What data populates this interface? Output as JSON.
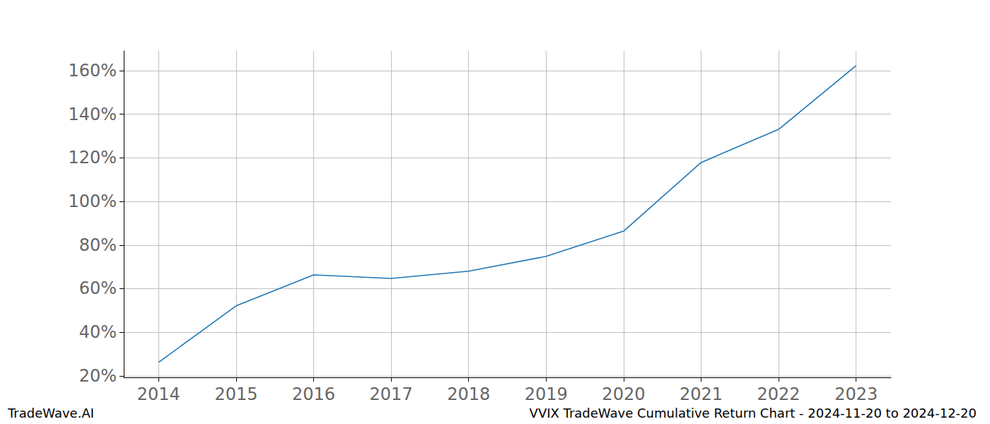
{
  "chart_data": {
    "type": "line",
    "title": "VVIX TradeWave Cumulative Return Chart - 2024-11-20 to 2024-12-20",
    "annotations": [
      "TradeWave.AI"
    ],
    "x": [
      2014,
      2015,
      2016,
      2017,
      2018,
      2019,
      2020,
      2021,
      2022,
      2023
    ],
    "values": [
      26.2,
      52.1,
      66.3,
      64.7,
      68.0,
      74.8,
      86.4,
      117.9,
      133.1,
      162.3
    ],
    "color": "#1f77b4",
    "xlim": [
      2013.55,
      2023.45
    ],
    "xticks": [
      2014,
      2015,
      2016,
      2017,
      2018,
      2019,
      2020,
      2021,
      2022,
      2023
    ],
    "ylim": [
      19.3,
      169.1
    ],
    "yticks": [
      {
        "value": 20,
        "label": "20%"
      },
      {
        "value": 40,
        "label": "40%"
      },
      {
        "value": 60,
        "label": "60%"
      },
      {
        "value": 80,
        "label": "80%"
      },
      {
        "value": 100,
        "label": "100%"
      },
      {
        "value": 120,
        "label": "120%"
      },
      {
        "value": 140,
        "label": "140%"
      },
      {
        "value": 160,
        "label": "160%"
      }
    ],
    "grid": true
  }
}
